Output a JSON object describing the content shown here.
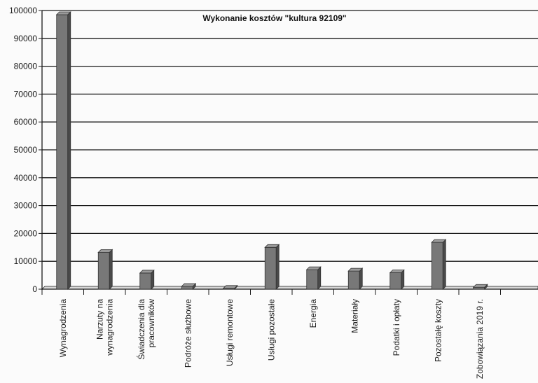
{
  "chart_data": {
    "type": "bar",
    "title": "Wykonanie kosztów \"kultura 92109\"",
    "xlabel": "",
    "ylabel": "",
    "ylim": [
      0,
      100000
    ],
    "yticks": [
      0,
      10000,
      20000,
      30000,
      40000,
      50000,
      60000,
      70000,
      80000,
      90000,
      100000
    ],
    "grid": true,
    "legend": "none",
    "categories": [
      [
        "Wynagrodzenia"
      ],
      [
        "Narzuty na",
        "wynagrodzenia"
      ],
      [
        "Świadczenia dla",
        "pracowników"
      ],
      [
        "Podróże służbowe"
      ],
      [
        "Usługi remontowe"
      ],
      [
        "Usługi pozostałe"
      ],
      [
        "Energia"
      ],
      [
        "Materiały"
      ],
      [
        "Podatki i opłaty"
      ],
      [
        "Pozostałę koszty"
      ],
      [
        "Zobowiązania 2019 r."
      ]
    ],
    "values": [
      98500,
      13200,
      5800,
      1000,
      300,
      15000,
      7000,
      6500,
      5900,
      16800,
      700
    ],
    "colors": {
      "bar": "#787878",
      "bar_light": "#9a9a9a",
      "bar_dark": "#4a4a4a",
      "grid": "#1a1a1a",
      "axis": "#1a1a1a"
    }
  }
}
